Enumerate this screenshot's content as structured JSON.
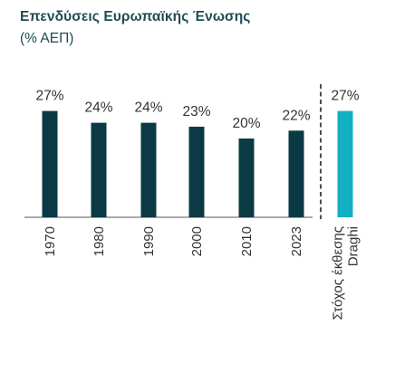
{
  "title": "Επενδύσεις Ευρωπαϊκής Ένωσης",
  "subtitle": "(% ΑΕΠ)",
  "colors": {
    "history": "#0b3a44",
    "target": "#13afc3",
    "axis": "#555555",
    "divider": "#222222"
  },
  "chart_data": {
    "type": "bar",
    "title": "Επενδύσεις Ευρωπαϊκής Ένωσης",
    "subtitle": "(% ΑΕΠ)",
    "xlabel": "",
    "ylabel": "",
    "unit": "%",
    "ylim": [
      0,
      30
    ],
    "grid": false,
    "categories": [
      "1970",
      "1980",
      "1990",
      "2000",
      "2010",
      "2023",
      "Στόχος έκθεσης Draghi"
    ],
    "category_lines": [
      [
        "1970"
      ],
      [
        "1980"
      ],
      [
        "1990"
      ],
      [
        "2000"
      ],
      [
        "2010"
      ],
      [
        "2023"
      ],
      [
        "Στόχος έκθεσης",
        "Draghi"
      ]
    ],
    "values": [
      27,
      24,
      24,
      23,
      20,
      22,
      27
    ],
    "labels": [
      "27%",
      "24%",
      "24%",
      "23%",
      "20%",
      "22%",
      "27%"
    ]
  }
}
